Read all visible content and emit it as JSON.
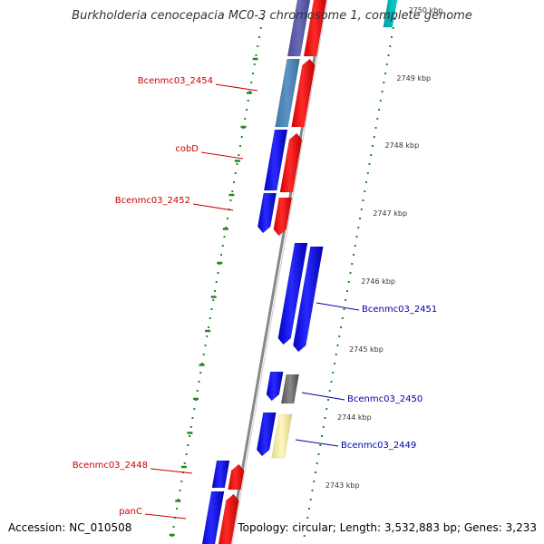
{
  "title": "Burkholderia cenocepacia MC0-3 chromosome 1, complete genome",
  "accession": "Accession: NC_010508",
  "topology": "Topology: circular; Length: 3,532,883 bp; Genes: 3,233",
  "colors": {
    "forward_strand": "#ff0000",
    "reverse_strand": "#0000ff",
    "backbone": "#888888",
    "ticks": "#228822",
    "label_left": "#cc0000",
    "label_right": "#0000aa"
  },
  "ticks": [
    {
      "label": "2750 kbp"
    },
    {
      "label": "2749 kbp"
    },
    {
      "label": "2748 kbp"
    },
    {
      "label": "2747 kbp"
    },
    {
      "label": "2746 kbp"
    },
    {
      "label": "2745 kbp"
    },
    {
      "label": "2744 kbp"
    },
    {
      "label": "2743 kbp"
    }
  ],
  "gene_labels": [
    {
      "name": "Bcenmc03_2454",
      "side": "left"
    },
    {
      "name": "cobD",
      "side": "left"
    },
    {
      "name": "Bcenmc03_2452",
      "side": "left"
    },
    {
      "name": "Bcenmc03_2451",
      "side": "right"
    },
    {
      "name": "Bcenmc03_2450",
      "side": "right"
    },
    {
      "name": "Bcenmc03_2449",
      "side": "right"
    },
    {
      "name": "Bcenmc03_2448",
      "side": "left"
    },
    {
      "name": "panC",
      "side": "left"
    }
  ]
}
